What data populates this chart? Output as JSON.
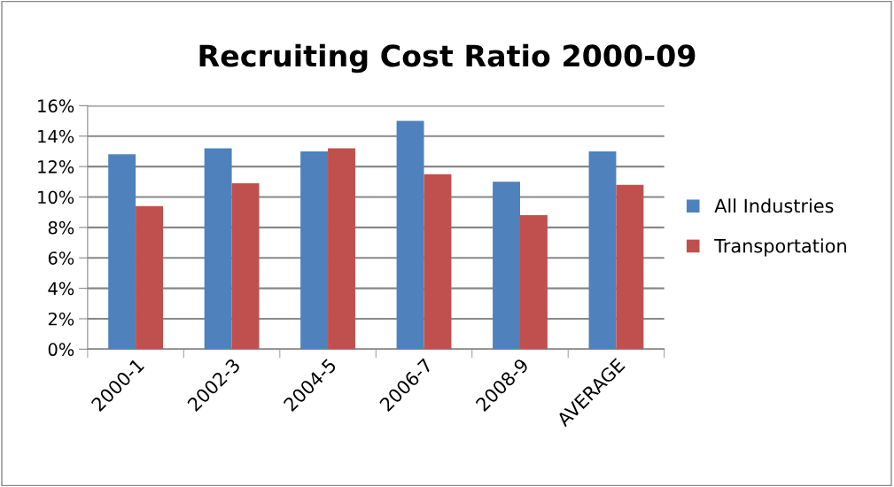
{
  "chart_data": {
    "type": "bar",
    "title": "Recruiting Cost Ratio 2000-09",
    "categories": [
      "2000-1",
      "2002-3",
      "2004-5",
      "2006-7",
      "2008-9",
      "AVERAGE"
    ],
    "series": [
      {
        "name": "All Industries",
        "color": "#4f81bd",
        "values": [
          12.8,
          13.2,
          13.0,
          15.0,
          11.0,
          13.0
        ]
      },
      {
        "name": "Transportation",
        "color": "#c0504d",
        "values": [
          9.4,
          10.9,
          13.2,
          11.5,
          8.8,
          10.8
        ]
      }
    ],
    "ylim": [
      0,
      16
    ],
    "yticks": [
      {
        "value": 0,
        "label": "0%"
      },
      {
        "value": 2,
        "label": "2%"
      },
      {
        "value": 4,
        "label": "4%"
      },
      {
        "value": 6,
        "label": "6%"
      },
      {
        "value": 8,
        "label": "8%"
      },
      {
        "value": 10,
        "label": "10%"
      },
      {
        "value": 12,
        "label": "12%"
      },
      {
        "value": 14,
        "label": "14%"
      },
      {
        "value": 16,
        "label": "16%"
      }
    ],
    "grid": "y",
    "legend": "right"
  }
}
